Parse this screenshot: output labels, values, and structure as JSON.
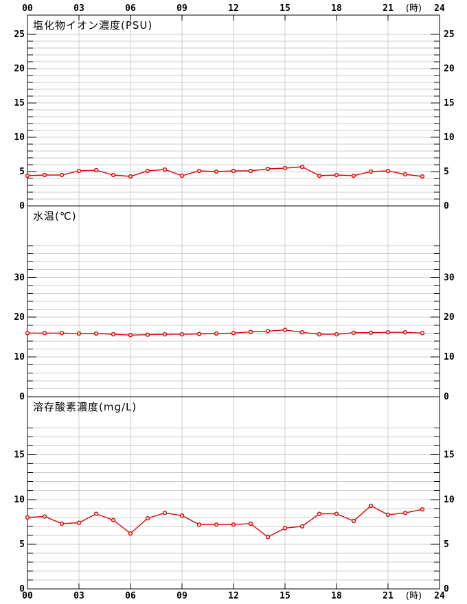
{
  "style": {
    "series_color": "#e00000",
    "marker_fill": "#ffffff",
    "grid_color": "#cccccc",
    "frame_color": "#000000",
    "text_color": "#000000",
    "background": "#ffffff"
  },
  "axis": {
    "hours": [
      0,
      3,
      6,
      9,
      12,
      15,
      18,
      21,
      24
    ],
    "labels": [
      "00",
      "03",
      "06",
      "09",
      "12",
      "15",
      "18",
      "21",
      "24"
    ],
    "unit_label": "(時)",
    "unit_label_hour": 22.5,
    "xlim": [
      0,
      24
    ]
  },
  "chart_data": [
    {
      "type": "line",
      "title": "塩化物イオン濃度(PSU)",
      "x_hours": [
        0,
        1,
        2,
        3,
        4,
        5,
        6,
        7,
        8,
        9,
        10,
        11,
        12,
        13,
        14,
        15,
        16,
        17,
        18,
        19,
        20,
        21,
        22,
        23
      ],
      "values": [
        4.4,
        4.5,
        4.5,
        5.1,
        5.2,
        4.5,
        4.3,
        5.1,
        5.3,
        4.4,
        5.1,
        5.0,
        5.1,
        5.1,
        5.4,
        5.5,
        5.7,
        4.4,
        4.5,
        4.4,
        5.0,
        5.1,
        4.6,
        4.3
      ],
      "ylim": [
        0,
        27.8
      ],
      "y_minor_step": 1,
      "y_major_step": 5,
      "y_tick_max": 25,
      "y_labeled": [
        0,
        5,
        10,
        15,
        20,
        25
      ],
      "grid": true,
      "legend": "none"
    },
    {
      "type": "line",
      "title": "水温(℃)",
      "x_hours": [
        0,
        1,
        2,
        3,
        4,
        5,
        6,
        7,
        8,
        9,
        10,
        11,
        12,
        13,
        14,
        15,
        16,
        17,
        18,
        19,
        20,
        21,
        22,
        23
      ],
      "values": [
        16.0,
        16.0,
        16.0,
        15.9,
        15.9,
        15.7,
        15.5,
        15.6,
        15.7,
        15.7,
        15.8,
        15.9,
        16.0,
        16.3,
        16.5,
        16.8,
        16.2,
        15.7,
        15.7,
        16.1,
        16.1,
        16.2,
        16.2,
        16.0
      ],
      "ylim": [
        0,
        48
      ],
      "y_minor_step": 2,
      "y_major_step": 10,
      "y_tick_max": 38,
      "y_labeled": [
        0,
        10,
        20,
        30
      ],
      "grid": true,
      "legend": "none"
    },
    {
      "type": "line",
      "title": "溶存酸素濃度(mg/L)",
      "x_hours": [
        0,
        1,
        2,
        3,
        4,
        5,
        6,
        7,
        8,
        9,
        10,
        11,
        12,
        13,
        14,
        15,
        16,
        17,
        18,
        19,
        20,
        21,
        22,
        23
      ],
      "values": [
        8.0,
        8.1,
        7.3,
        7.4,
        8.4,
        7.7,
        6.2,
        7.9,
        8.5,
        8.2,
        7.2,
        7.2,
        7.2,
        7.3,
        5.8,
        6.8,
        7.0,
        8.4,
        8.4,
        7.6,
        9.3,
        8.3,
        8.5,
        8.9
      ],
      "ylim": [
        0,
        21.5
      ],
      "y_minor_step": 1,
      "y_major_step": 5,
      "y_tick_max": 18,
      "y_labeled": [
        0,
        5,
        10,
        15
      ],
      "grid": true,
      "legend": "none"
    }
  ]
}
